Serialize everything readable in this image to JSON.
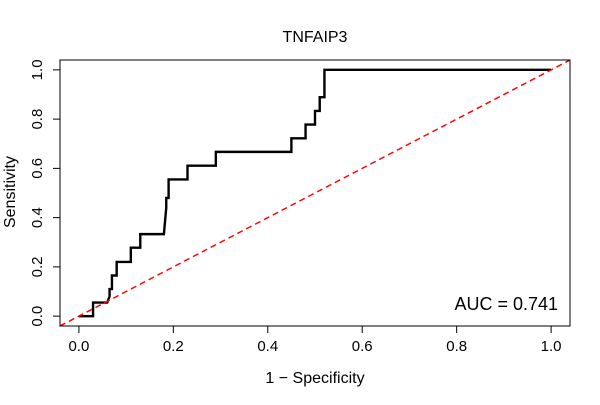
{
  "chart_data": {
    "type": "line",
    "title": "TNFAIP3",
    "xlabel": "1 − Specificity",
    "ylabel": "Sensitivity",
    "xlim": [
      -0.04,
      1.04
    ],
    "ylim": [
      -0.04,
      1.04
    ],
    "x_ticks": [
      0.0,
      0.2,
      0.4,
      0.6,
      0.8,
      1.0
    ],
    "x_tick_labels": [
      "0.0",
      "0.2",
      "0.4",
      "0.6",
      "0.8",
      "1.0"
    ],
    "y_ticks": [
      0.0,
      0.2,
      0.4,
      0.6,
      0.8,
      1.0
    ],
    "y_tick_labels": [
      "0.0",
      "0.2",
      "0.4",
      "0.6",
      "0.8",
      "1.0"
    ],
    "grid": false,
    "annotation": "AUC = 0.741",
    "annotation_position": "bottom-right",
    "series": [
      {
        "color": "#000000",
        "style": "solid",
        "x": [
          0.0,
          0.02,
          0.03,
          0.03,
          0.06,
          0.065,
          0.065,
          0.07,
          0.07,
          0.08,
          0.08,
          0.1,
          0.11,
          0.11,
          0.13,
          0.13,
          0.18,
          0.185,
          0.185,
          0.19,
          0.19,
          0.22,
          0.23,
          0.23,
          0.29,
          0.29,
          0.42,
          0.45,
          0.45,
          0.47,
          0.48,
          0.48,
          0.495,
          0.5,
          0.5,
          0.51,
          0.51,
          0.52,
          0.52,
          1.0
        ],
        "y": [
          0.0,
          0.0,
          0.0,
          0.055,
          0.055,
          0.08,
          0.11,
          0.11,
          0.165,
          0.165,
          0.22,
          0.22,
          0.22,
          0.278,
          0.278,
          0.333,
          0.333,
          0.44,
          0.48,
          0.48,
          0.555,
          0.555,
          0.555,
          0.611,
          0.611,
          0.667,
          0.667,
          0.667,
          0.722,
          0.722,
          0.722,
          0.778,
          0.778,
          0.778,
          0.833,
          0.833,
          0.889,
          0.889,
          1.0,
          1.0
        ]
      },
      {
        "color": "#ff0000",
        "style": "dashed",
        "x": [
          -0.04,
          1.04
        ],
        "y": [
          -0.04,
          1.04
        ]
      }
    ]
  }
}
